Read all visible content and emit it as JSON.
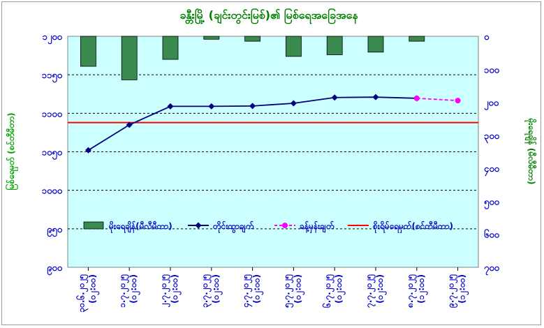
{
  "chart_data": {
    "type": "bar+line",
    "title": "ခန္တီးမြို့ (ချင်းတွင်းမြစ်)၏ မြစ်ရေအခြေအနေ",
    "ylabel_left": "မြစ်ရေမှတ် (စင်တီမီတာ)",
    "ylabel_right": "မိုးရေချိန် (မီလီမီတာ)",
    "y_left": {
      "min": 900,
      "max": 1200,
      "ticks": [
        900,
        950,
        1000,
        1050,
        1100,
        1150,
        1200
      ],
      "tick_labels": [
        "၉၀၀",
        "၉၅၀",
        "၁၀၀၀",
        "၁၀၅၀",
        "၁၁၀၀",
        "၁၁၅၀",
        "၁၂၀၀"
      ]
    },
    "y_right": {
      "min": 0,
      "max": 700,
      "inverted": true,
      "ticks": [
        0,
        100,
        200,
        300,
        400,
        500,
        600,
        700
      ],
      "tick_labels": [
        "၀",
        "၁၀၀",
        "၂၀၀",
        "၃၀၀",
        "၄၀၀",
        "၅၀၀",
        "၆၀၀",
        "၇၀၀"
      ]
    },
    "categories": [
      {
        "date": "၃၀.၆.၂၀၂၅",
        "time": "(၀၂:၀၀)"
      },
      {
        "date": "၁.၇.၂၀၂၅",
        "time": "(၀၂:၀၀)"
      },
      {
        "date": "၂.၇.၂၀၂၅",
        "time": "(၀၂:၀၀)"
      },
      {
        "date": "၃.၇.၂၀၂၅",
        "time": "(၀၂:၀၀)"
      },
      {
        "date": "၄.၇.၂၀၂၅",
        "time": "(၀၂:၀၀)"
      },
      {
        "date": "၅.၇.၂၀၂၅",
        "time": "(၀၂:၀၀)"
      },
      {
        "date": "၆.၇.၂၀၂၅",
        "time": "(၀၂:၀၀)"
      },
      {
        "date": "၇.၇.၂၀၂၅",
        "time": "(၀၂:၀၀)"
      },
      {
        "date": "၈.၇.၂၀၂၅",
        "time": "(၁၂:၀၀)"
      },
      {
        "date": "၉.၇.၂၀၂၅",
        "time": "(၁၂:၀၀)"
      }
    ],
    "series": [
      {
        "name": "မိုးရေချိန်(မီလီမီတာ)",
        "kind": "bar",
        "axis": "right",
        "color": "#3a8a50",
        "values": [
          91,
          132,
          70,
          9,
          15,
          61,
          56,
          48,
          15,
          null
        ]
      },
      {
        "name": "တိုင်းထွာချက်",
        "kind": "line",
        "axis": "left",
        "color": "#000080",
        "values": [
          1052,
          1085,
          1109,
          1109,
          1109.5,
          1113,
          1120.5,
          1121,
          1119.5,
          null
        ]
      },
      {
        "name": "ခန့်မှန်းချက်",
        "kind": "line",
        "axis": "left",
        "color": "#ff00ff",
        "dashed": true,
        "values": [
          null,
          null,
          null,
          null,
          null,
          null,
          null,
          null,
          1119.5,
          1116.5
        ]
      },
      {
        "name": "စိုးရိမ်ရေမှတ်(စင်တီမီတာ)",
        "kind": "hline",
        "axis": "left",
        "color": "#ff0000",
        "value": 1088
      }
    ],
    "legend_position": "inside-bottom",
    "grid": "horizontal dashed",
    "colors": {
      "plot_bg": "#ccffff",
      "title": "#008000",
      "axis_text": "#0000cc",
      "left_label": "#00a000",
      "right_label": "#008000"
    }
  }
}
